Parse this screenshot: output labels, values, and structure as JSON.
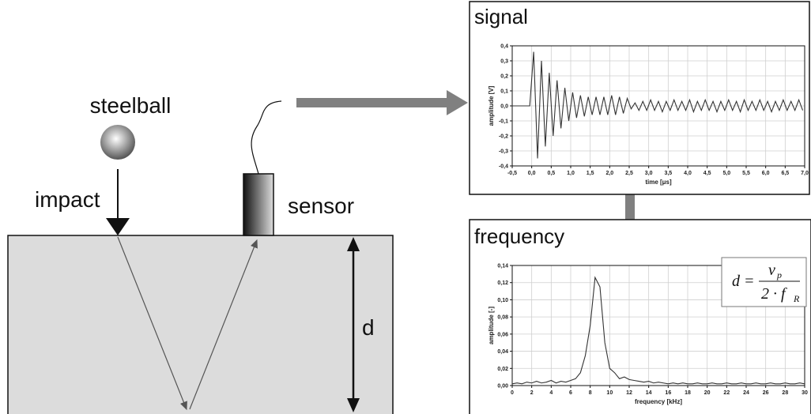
{
  "labels": {
    "steelball": "steelball",
    "impact": "impact",
    "sensor": "sensor",
    "depth": "d"
  },
  "chart_data": [
    {
      "type": "line",
      "title": "signal",
      "xlabel": "time [μs]",
      "ylabel": "amplitude [V]",
      "color": "#333333",
      "grid": true,
      "xlim": [
        -0.5,
        7.0
      ],
      "ylim": [
        -0.4,
        0.4
      ],
      "xticks": [
        {
          "value": -0.5,
          "label": "-0,5"
        },
        {
          "value": 0,
          "label": "0,0"
        },
        {
          "value": 0.5,
          "label": "0,5"
        },
        {
          "value": 1,
          "label": "1,0"
        },
        {
          "value": 1.5,
          "label": "1,5"
        },
        {
          "value": 2,
          "label": "2,0"
        },
        {
          "value": 2.5,
          "label": "2,5"
        },
        {
          "value": 3,
          "label": "3,0"
        },
        {
          "value": 3.5,
          "label": "3,5"
        },
        {
          "value": 4,
          "label": "4,0"
        },
        {
          "value": 4.5,
          "label": "4,5"
        },
        {
          "value": 5,
          "label": "5,0"
        },
        {
          "value": 5.5,
          "label": "5,5"
        },
        {
          "value": 6,
          "label": "6,0"
        },
        {
          "value": 6.5,
          "label": "6,5"
        },
        {
          "value": 7,
          "label": "7,0"
        }
      ],
      "yticks": [
        {
          "value": -0.4,
          "label": "-0,4"
        },
        {
          "value": -0.3,
          "label": "-0,3"
        },
        {
          "value": -0.2,
          "label": "-0,2"
        },
        {
          "value": -0.1,
          "label": "-0,1"
        },
        {
          "value": 0,
          "label": "0,0"
        },
        {
          "value": 0.1,
          "label": "0,1"
        },
        {
          "value": 0.2,
          "label": "0,2"
        },
        {
          "value": 0.3,
          "label": "0,3"
        },
        {
          "value": 0.4,
          "label": "0,4"
        }
      ],
      "x": [
        -0.5,
        -0.05,
        0.05,
        0.15,
        0.25,
        0.35,
        0.45,
        0.55,
        0.65,
        0.75,
        0.85,
        0.95,
        1.05,
        1.15,
        1.25,
        1.35,
        1.45,
        1.55,
        1.65,
        1.75,
        1.85,
        1.95,
        2.05,
        2.15,
        2.25,
        2.35,
        2.45,
        2.55,
        2.65,
        2.75,
        2.85,
        2.95,
        3.05,
        3.15,
        3.25,
        3.35,
        3.45,
        3.55,
        3.65,
        3.75,
        3.85,
        3.95,
        4.05,
        4.15,
        4.25,
        4.35,
        4.45,
        4.55,
        4.65,
        4.75,
        4.85,
        4.95,
        5.05,
        5.15,
        5.25,
        5.35,
        5.45,
        5.55,
        5.65,
        5.75,
        5.85,
        5.95,
        6.05,
        6.15,
        6.25,
        6.35,
        6.45,
        6.55,
        6.65,
        6.75,
        6.85,
        6.95
      ],
      "values": [
        0,
        0,
        0.36,
        -0.35,
        0.3,
        -0.27,
        0.22,
        -0.2,
        0.17,
        -0.15,
        0.12,
        -0.1,
        0.09,
        -0.08,
        0.07,
        -0.07,
        0.06,
        -0.06,
        0.06,
        -0.06,
        0.06,
        -0.06,
        0.07,
        -0.06,
        0.06,
        -0.05,
        0.05,
        -0.02,
        0.02,
        -0.03,
        0.03,
        -0.03,
        0.04,
        -0.03,
        0.03,
        -0.04,
        0.03,
        -0.03,
        0.04,
        -0.03,
        0.03,
        -0.03,
        0.04,
        -0.04,
        0.03,
        -0.03,
        0.04,
        -0.03,
        0.03,
        -0.04,
        0.03,
        -0.03,
        0.04,
        -0.03,
        0.03,
        -0.04,
        0.04,
        -0.03,
        0.03,
        -0.03,
        0.04,
        -0.03,
        0.03,
        -0.04,
        0.03,
        -0.03,
        0.04,
        -0.03,
        0.03,
        -0.03,
        0.04,
        -0.03
      ]
    },
    {
      "type": "line",
      "title": "frequency",
      "xlabel": "frequency [kHz]",
      "ylabel": "amplitude [-]",
      "color": "#333333",
      "grid": true,
      "xlim": [
        0,
        30
      ],
      "ylim": [
        0,
        0.14
      ],
      "xticks": [
        0,
        2,
        4,
        6,
        8,
        10,
        12,
        14,
        16,
        18,
        20,
        22,
        24,
        26,
        28,
        30
      ],
      "yticks": [
        {
          "value": 0,
          "label": "0,00"
        },
        {
          "value": 0.02,
          "label": "0,02"
        },
        {
          "value": 0.04,
          "label": "0,04"
        },
        {
          "value": 0.06,
          "label": "0,06"
        },
        {
          "value": 0.08,
          "label": "0,08"
        },
        {
          "value": 0.1,
          "label": "0,10"
        },
        {
          "value": 0.12,
          "label": "0,12"
        },
        {
          "value": 0.14,
          "label": "0,14"
        }
      ],
      "x": [
        0,
        0.5,
        1,
        1.5,
        2,
        2.5,
        3,
        3.5,
        4,
        4.5,
        5,
        5.5,
        6,
        6.5,
        7,
        7.5,
        8,
        8.5,
        9,
        9.5,
        10,
        10.5,
        11,
        11.5,
        12,
        12.5,
        13,
        13.5,
        14,
        14.5,
        15,
        15.5,
        16,
        16.5,
        17,
        17.5,
        18,
        18.5,
        19,
        19.5,
        20,
        20.5,
        21,
        21.5,
        22,
        22.5,
        23,
        23.5,
        24,
        24.5,
        25,
        25.5,
        26,
        26.5,
        27,
        27.5,
        28,
        28.5,
        29,
        29.5,
        30
      ],
      "values": [
        0.002,
        0.003,
        0.002,
        0.004,
        0.003,
        0.005,
        0.003,
        0.004,
        0.006,
        0.003,
        0.005,
        0.004,
        0.006,
        0.008,
        0.015,
        0.035,
        0.07,
        0.126,
        0.115,
        0.05,
        0.02,
        0.015,
        0.008,
        0.01,
        0.007,
        0.006,
        0.005,
        0.004,
        0.005,
        0.003,
        0.004,
        0.003,
        0.002,
        0.003,
        0.002,
        0.003,
        0.002,
        0.002,
        0.003,
        0.002,
        0.002,
        0.003,
        0.002,
        0.002,
        0.003,
        0.002,
        0.002,
        0.003,
        0.002,
        0.002,
        0.003,
        0.002,
        0.002,
        0.003,
        0.002,
        0.002,
        0.003,
        0.002,
        0.002,
        0.003,
        0.002
      ]
    }
  ],
  "formula": {
    "lhs": "d =",
    "numerator": "v",
    "numerator_sub": "p",
    "denominator": "2 · f",
    "denominator_sub": "R"
  }
}
